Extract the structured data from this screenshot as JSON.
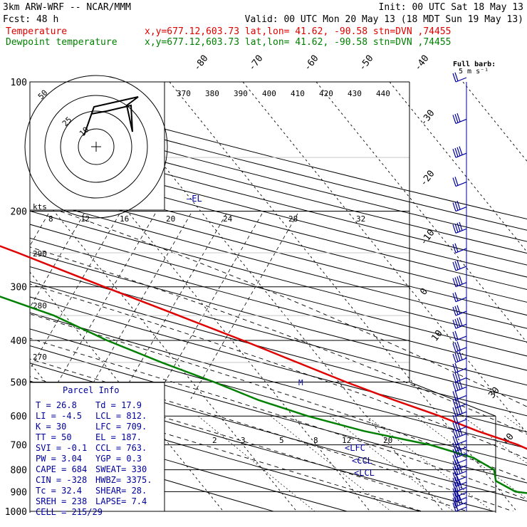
{
  "header": {
    "model": "3km ARW-WRF -- NCAR/MMM",
    "init": "Init: 00 UTC Sat 18 May 13",
    "fcst": "Fcst:   48 h",
    "valid": "Valid: 00 UTC Mon 20 May 13 (18 MDT Sun 19 May 13)",
    "temp_label": "Temperature",
    "temp_info": "x,y=677.12,603.73   lat,lon= 41.62, -90.58  stn=DVN ,74455",
    "dew_label": "Dewpoint temperature",
    "dew_info": "x,y=677.12,603.73   lat,lon= 41.62, -90.58  stn=DVN ,74455"
  },
  "wind_legend": {
    "title": "Full barb:",
    "value": "5 m s⁻¹"
  },
  "hodograph": {
    "ring_labels": [
      "50",
      "25",
      "10"
    ],
    "kts_label": "kts"
  },
  "annotations": {
    "el": "—EL",
    "lfc": "<LFC",
    "ccl": "<CCL",
    "lcl": "<LCL",
    "wind_marker": "M"
  },
  "parcel": {
    "title": "Parcel Info",
    "rows": [
      [
        "T   =  26.8",
        "Td =  17.9"
      ],
      [
        "LI  =  -4.5",
        "LCL =  812."
      ],
      [
        "K   =    30",
        "LFC =  709."
      ],
      [
        "TT  =    50",
        "EL  =  187."
      ],
      [
        "SVI =  -0.1",
        "CCL =  763."
      ],
      [
        "PW  =  3.04",
        "YGP =   0.3"
      ],
      [
        "CAPE =   684",
        "SWEAT=  330"
      ],
      [
        "CIN  =  -328",
        "HWBZ= 3375."
      ],
      [
        "Tc   =  32.4",
        "SHEAR=  28."
      ],
      [
        "SREH =   238",
        "LAPSE=  7.4"
      ],
      [
        "CELL = 215/29",
        ""
      ]
    ]
  },
  "colors": {
    "temperature": "#e00000",
    "dewpoint": "#008000",
    "parcel_text": "#00009c",
    "barbs": "#00009c"
  },
  "chart_data": {
    "type": "line",
    "title": "",
    "ylabel": "",
    "pressure_ticks": [
      100,
      200,
      300,
      400,
      500,
      600,
      700,
      800,
      900,
      1000
    ],
    "pressure_tick_labels": [
      "100",
      "200",
      "300",
      "400",
      "500",
      "600",
      "700",
      "800",
      "900",
      "1000"
    ],
    "theta_labels": [
      "370",
      "380",
      "390",
      "400",
      "410",
      "420",
      "430",
      "440"
    ],
    "mixing_ratio_upper": [
      "8",
      "12",
      "16",
      "20",
      "24",
      "28",
      "32"
    ],
    "mixing_ratio_lower": [
      "2",
      "3",
      "5",
      "8",
      "12",
      "20"
    ],
    "isotherm_labels": [
      "-80",
      "-70",
      "-60",
      "-50",
      "-40",
      "-30",
      "-20",
      "-10",
      "0",
      "10",
      "30",
      "40"
    ],
    "adiabat_labels": [
      "290",
      "280",
      "270"
    ],
    "series": [
      {
        "name": "Temperature",
        "points": [
          [
            1000,
            27.0
          ],
          [
            950,
            22.5
          ],
          [
            900,
            20.0
          ],
          [
            850,
            17.0
          ],
          [
            800,
            13.5
          ],
          [
            750,
            10.0
          ],
          [
            700,
            7.5
          ],
          [
            650,
            3.5
          ],
          [
            600,
            0.0
          ],
          [
            550,
            -4.5
          ],
          [
            500,
            -9.0
          ],
          [
            450,
            -13.5
          ],
          [
            400,
            -18.5
          ],
          [
            350,
            -24.5
          ],
          [
            300,
            -31.5
          ],
          [
            250,
            -39.5
          ],
          [
            225,
            -44.5
          ],
          [
            200,
            -50.0
          ],
          [
            180,
            -55.0
          ],
          [
            170,
            -56.0
          ],
          [
            160,
            -55.5
          ],
          [
            150,
            -54.5
          ],
          [
            140,
            -54.0
          ],
          [
            130,
            -55.0
          ],
          [
            120,
            -57.0
          ],
          [
            110,
            -60.0
          ],
          [
            100,
            -63.0
          ]
        ]
      },
      {
        "name": "Dewpoint temperature",
        "points": [
          [
            1000,
            17.9
          ],
          [
            990,
            15.0
          ],
          [
            960,
            15.0
          ],
          [
            950,
            14.5
          ],
          [
            930,
            8.0
          ],
          [
            900,
            2.0
          ],
          [
            850,
            0.5
          ],
          [
            800,
            1.5
          ],
          [
            750,
            0.0
          ],
          [
            700,
            -4.5
          ],
          [
            650,
            -12.0
          ],
          [
            600,
            -18.0
          ],
          [
            550,
            -23.0
          ],
          [
            500,
            -27.0
          ],
          [
            450,
            -32.0
          ],
          [
            400,
            -37.0
          ],
          [
            350,
            -41.5
          ],
          [
            300,
            -49.5
          ],
          [
            250,
            -52.0
          ],
          [
            200,
            -60.5
          ],
          [
            170,
            -62.0
          ],
          [
            150,
            -65.0
          ],
          [
            130,
            -72.0
          ],
          [
            115,
            -80.0
          ],
          [
            100,
            -87.0
          ]
        ]
      }
    ]
  }
}
